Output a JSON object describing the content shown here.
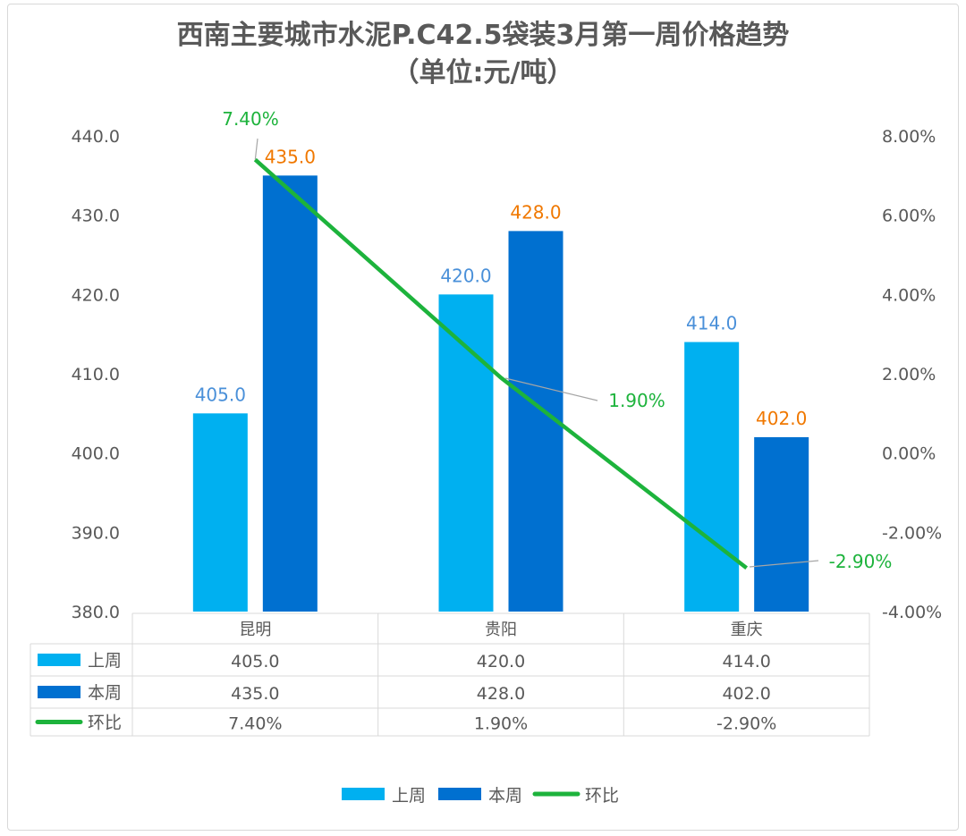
{
  "chart_data": {
    "type": "bar",
    "title": "西南主要城市水泥P.C42.5袋装3月第一周价格趋势",
    "subtitle": "（单位:元/吨）",
    "categories": [
      "昆明",
      "贵阳",
      "重庆"
    ],
    "series": [
      {
        "name": "上周",
        "type": "bar",
        "axis": "left",
        "color": "#00b0f0",
        "values": [
          405.0,
          420.0,
          414.0
        ],
        "labels": [
          "405.0",
          "420.0",
          "414.0"
        ],
        "label_color": "#4a90d9"
      },
      {
        "name": "本周",
        "type": "bar",
        "axis": "left",
        "color": "#0070d0",
        "values": [
          435.0,
          428.0,
          402.0
        ],
        "labels": [
          "435.0",
          "428.0",
          "402.0"
        ],
        "label_color": "#f07800"
      },
      {
        "name": "环比",
        "type": "line",
        "axis": "right",
        "color": "#1db33c",
        "values": [
          7.4,
          1.9,
          -2.9
        ],
        "labels": [
          "7.40%",
          "1.90%",
          "-2.90%"
        ],
        "label_color": "#1db33c"
      }
    ],
    "ylim_left": [
      380,
      440
    ],
    "yticks_left": [
      "380.0",
      "390.0",
      "400.0",
      "410.0",
      "420.0",
      "430.0",
      "440.0"
    ],
    "ylim_right": [
      -4,
      8
    ],
    "yticks_right": [
      "-4.00%",
      "-2.00%",
      "0.00%",
      "2.00%",
      "4.00%",
      "6.00%",
      "8.00%"
    ],
    "data_table": true,
    "grid": false,
    "legend_position": "bottom"
  }
}
